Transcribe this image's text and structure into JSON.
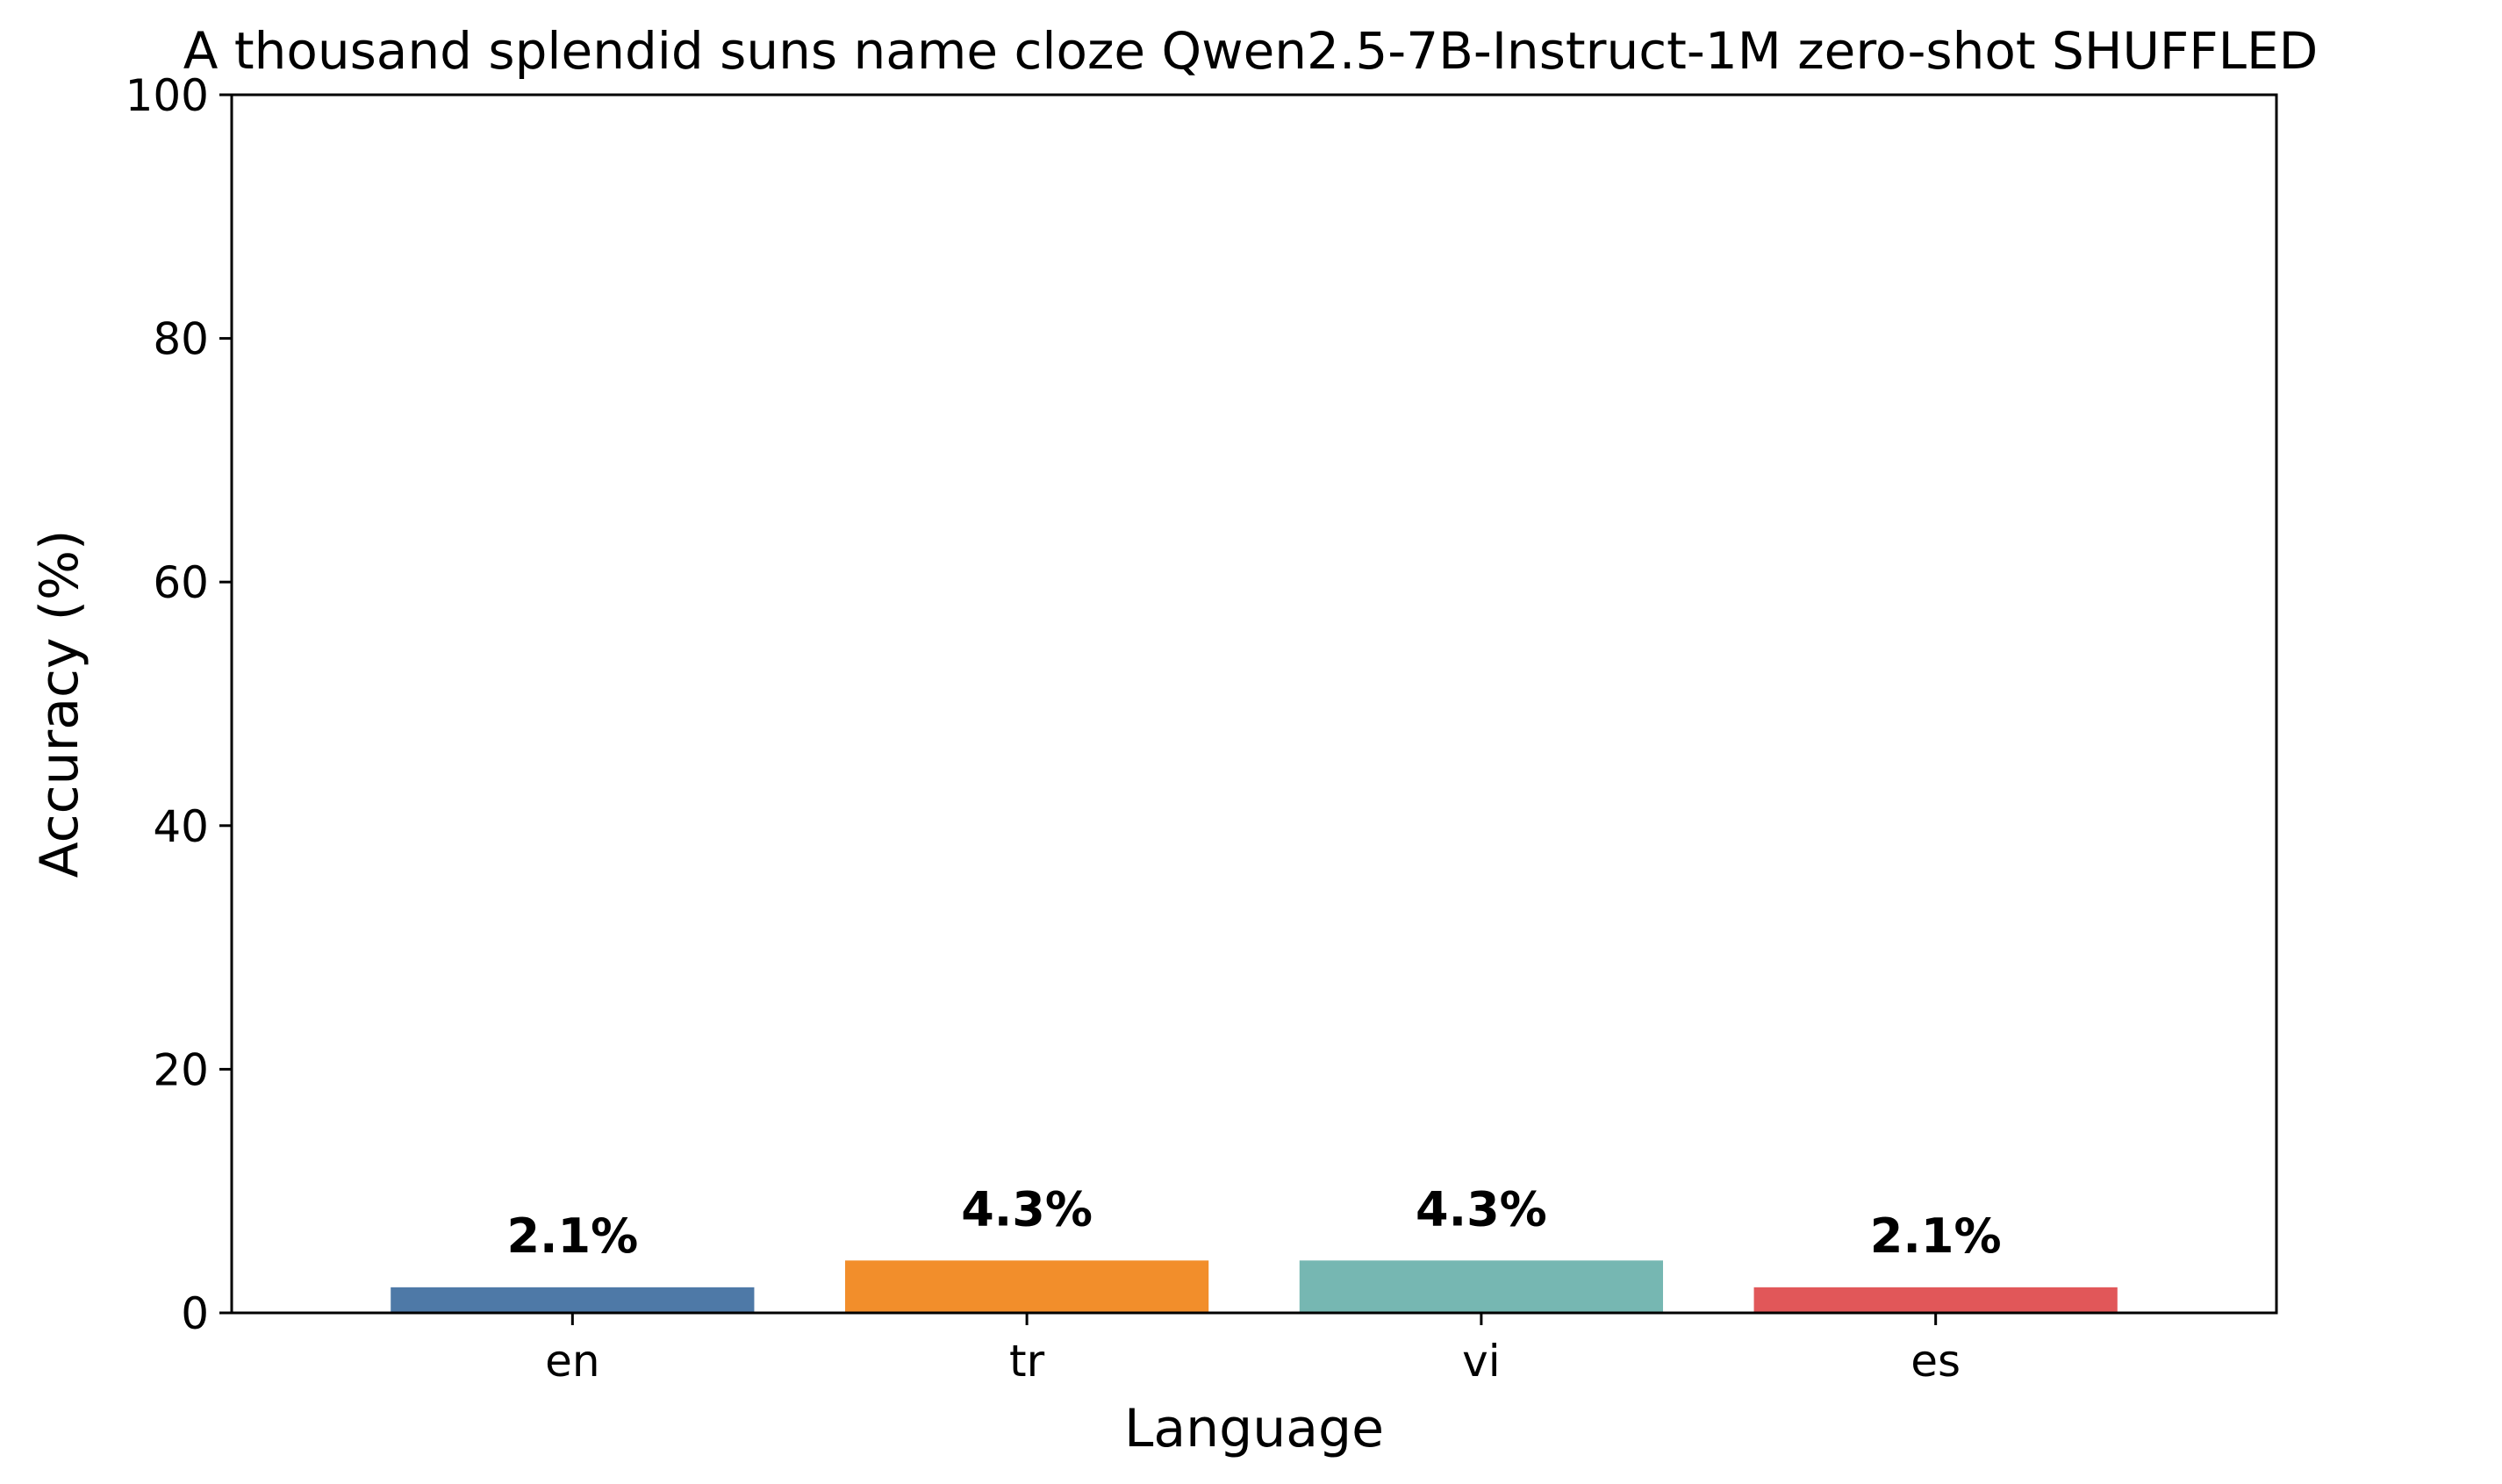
{
  "chart_data": {
    "type": "bar",
    "title": "A thousand splendid suns name cloze Qwen2.5-7B-Instruct-1M zero-shot SHUFFLED",
    "xlabel": "Language",
    "ylabel": "Accuracy (%)",
    "categories": [
      "en",
      "tr",
      "vi",
      "es"
    ],
    "values": [
      2.1,
      4.3,
      4.3,
      2.1
    ],
    "data_labels": [
      "2.1%",
      "4.3%",
      "4.3%",
      "2.1%"
    ],
    "colors": [
      "#4e79a7",
      "#f28e2b",
      "#76b7b2",
      "#e15759"
    ],
    "ylim": [
      0,
      100
    ],
    "yticks": [
      0,
      20,
      40,
      60,
      80,
      100
    ],
    "ytick_labels": [
      "0",
      "20",
      "40",
      "60",
      "80",
      "100"
    ],
    "grid": false,
    "legend": false
  }
}
